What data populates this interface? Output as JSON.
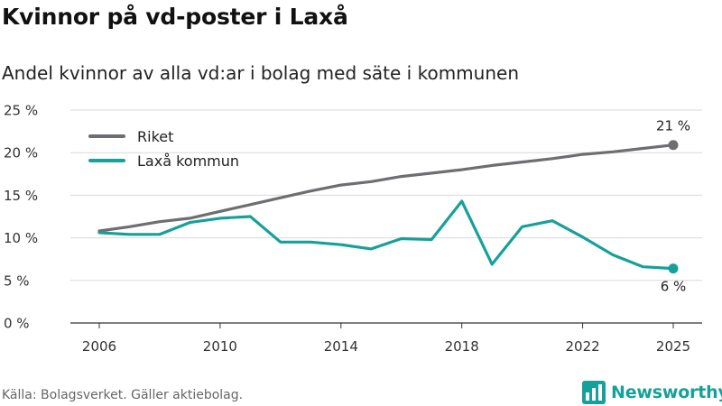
{
  "title": "Kvinnor på vd-poster i Laxå",
  "subtitle": "Andel kvinnor av alla vd:ar i bolag med säte i kommunen",
  "source": "Källa: Bolagsverket. Gäller aktiebolag.",
  "brand": "Newsworthy",
  "colors": {
    "riket": "#6d6e71",
    "laxa": "#17a09a",
    "grid": "#d9d9d9",
    "axis": "#333333"
  },
  "chart_data": {
    "type": "line",
    "x": [
      2006,
      2007,
      2008,
      2009,
      2010,
      2011,
      2012,
      2013,
      2014,
      2015,
      2016,
      2017,
      2018,
      2019,
      2020,
      2021,
      2022,
      2023,
      2024,
      2025
    ],
    "series": [
      {
        "key": "riket",
        "name": "Riket",
        "values": [
          10.8,
          11.3,
          11.9,
          12.3,
          13.1,
          13.9,
          14.7,
          15.5,
          16.2,
          16.6,
          17.2,
          17.6,
          18.0,
          18.5,
          18.9,
          19.3,
          19.8,
          20.1,
          20.5,
          20.9
        ],
        "end_label": "21 %"
      },
      {
        "key": "laxa",
        "name": "Laxå kommun",
        "values": [
          10.6,
          10.4,
          10.4,
          11.8,
          12.3,
          12.5,
          9.5,
          9.5,
          9.2,
          8.7,
          9.9,
          9.8,
          14.3,
          6.9,
          11.3,
          12.0,
          10.1,
          8.0,
          6.6,
          6.4
        ],
        "end_label": "6 %"
      }
    ],
    "ylim": [
      0,
      25
    ],
    "yticks": [
      0,
      5,
      10,
      15,
      20,
      25
    ],
    "ytick_labels": [
      "0 %",
      "5 %",
      "10 %",
      "15 %",
      "20 %",
      "25 %"
    ],
    "xticks": [
      2006,
      2010,
      2014,
      2018,
      2022,
      2025
    ],
    "xtick_labels": [
      "2006",
      "2010",
      "2014",
      "2018",
      "2022",
      "2025"
    ],
    "xlabel": "",
    "ylabel": "",
    "grid": true,
    "legend": "top-left"
  }
}
